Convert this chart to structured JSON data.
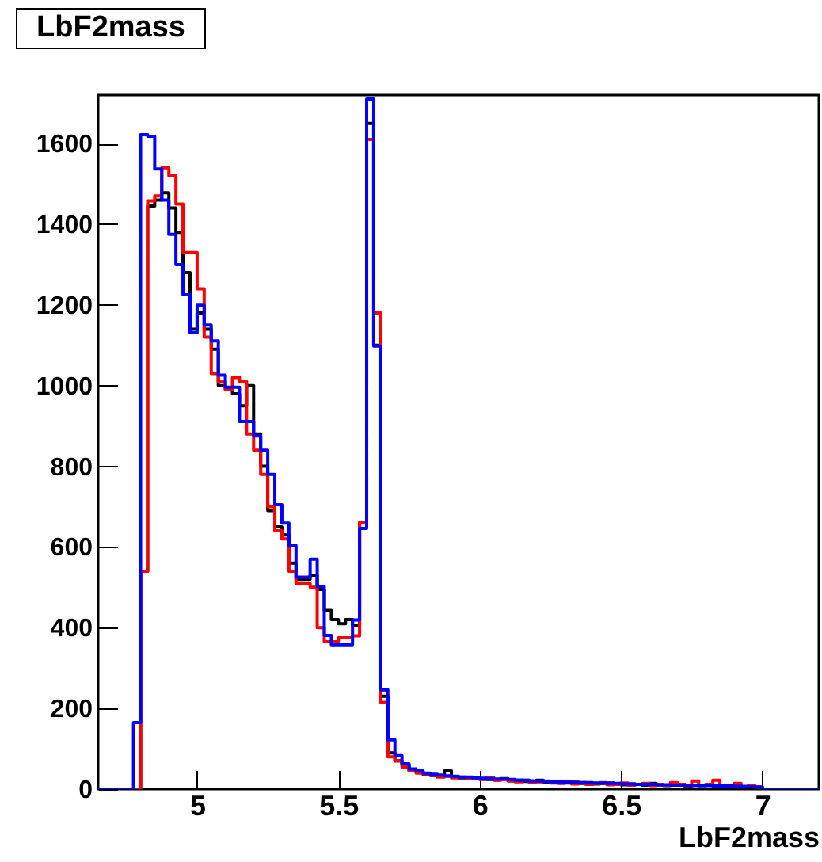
{
  "chart_data": {
    "type": "histogram",
    "title": "LbF2mass",
    "xlabel": "LbF2mass",
    "bins": [
      4.65,
      4.675,
      4.7,
      4.725,
      4.75,
      4.775,
      4.8,
      4.825,
      4.85,
      4.875,
      4.9,
      4.925,
      4.95,
      4.975,
      5.0,
      5.025,
      5.05,
      5.075,
      5.1,
      5.125,
      5.15,
      5.175,
      5.2,
      5.225,
      5.25,
      5.275,
      5.3,
      5.325,
      5.35,
      5.375,
      5.4,
      5.425,
      5.45,
      5.475,
      5.5,
      5.525,
      5.55,
      5.575,
      5.6,
      5.625,
      5.65,
      5.675,
      5.7,
      5.725,
      5.75,
      5.775,
      5.8,
      5.825,
      5.85,
      5.875,
      5.9,
      5.925,
      5.95,
      5.975,
      6.0,
      6.025,
      6.05,
      6.075,
      6.1,
      6.125,
      6.15,
      6.175,
      6.2,
      6.225,
      6.25,
      6.275,
      6.3,
      6.325,
      6.35,
      6.375,
      6.4,
      6.425,
      6.45,
      6.475,
      6.5,
      6.525,
      6.55,
      6.575,
      6.6,
      6.625,
      6.65,
      6.675,
      6.7,
      6.725,
      6.75,
      6.775,
      6.8,
      6.825,
      6.85,
      6.875,
      6.9,
      6.925,
      6.95,
      6.975,
      7.0,
      7.025,
      7.05,
      7.075,
      7.1,
      7.125,
      7.15,
      7.175,
      7.2
    ],
    "series": [
      {
        "color": "#000000",
        "values": [
          0,
          0,
          0,
          0,
          0,
          0,
          540,
          1445,
          1460,
          1478,
          1440,
          1380,
          1280,
          1140,
          1180,
          1140,
          1090,
          1000,
          990,
          980,
          950,
          1000,
          880,
          800,
          690,
          650,
          630,
          560,
          520,
          520,
          530,
          495,
          443,
          420,
          410,
          420,
          406,
          660,
          1650,
          1100,
          230,
          90,
          70,
          60,
          45,
          42,
          36,
          34,
          32,
          45,
          30,
          28,
          26,
          29,
          25,
          24,
          23,
          26,
          21,
          22,
          19,
          20,
          22,
          17,
          16,
          19,
          15,
          17,
          14,
          16,
          13,
          14,
          15,
          12,
          11,
          13,
          12,
          10,
          14,
          11,
          9,
          10,
          12,
          8,
          10,
          9,
          11,
          8,
          7,
          9,
          8,
          6,
          7,
          5,
          0,
          0,
          0,
          0,
          0,
          0,
          0,
          0
        ]
      },
      {
        "color": "#ff0000",
        "values": [
          0,
          0,
          0,
          0,
          0,
          0,
          540,
          1458,
          1470,
          1540,
          1520,
          1450,
          1330,
          1330,
          1240,
          1120,
          1030,
          1010,
          990,
          1020,
          1010,
          880,
          840,
          780,
          700,
          640,
          620,
          540,
          510,
          510,
          500,
          400,
          365,
          365,
          375,
          375,
          380,
          660,
          1610,
          1180,
          215,
          80,
          70,
          55,
          45,
          40,
          38,
          35,
          30,
          32,
          28,
          30,
          27,
          26,
          24,
          28,
          22,
          24,
          20,
          18,
          22,
          17,
          18,
          20,
          15,
          14,
          18,
          13,
          16,
          12,
          14,
          16,
          11,
          12,
          15,
          10,
          12,
          14,
          9,
          11,
          10,
          16,
          12,
          9,
          20,
          10,
          12,
          22,
          8,
          10,
          14,
          6,
          8,
          5,
          0,
          0,
          0,
          0,
          0,
          0,
          0,
          0
        ]
      },
      {
        "color": "#0000ff",
        "values": [
          0,
          0,
          0,
          0,
          0,
          165,
          1622,
          1618,
          1537,
          1460,
          1375,
          1300,
          1225,
          1131,
          1199,
          1150,
          1111,
          1026,
          996,
          996,
          911,
          911,
          875,
          840,
          780,
          705,
          659,
          604,
          525,
          525,
          570,
          502,
          381,
          358,
          358,
          358,
          419,
          646,
          1710,
          1098,
          246,
          122,
          83,
          63,
          50,
          45,
          40,
          37,
          35,
          33,
          32,
          30,
          30,
          28,
          27,
          26,
          25,
          25,
          24,
          22,
          22,
          20,
          20,
          19,
          18,
          18,
          17,
          16,
          16,
          15,
          15,
          15,
          14,
          14,
          13,
          13,
          12,
          12,
          12,
          11,
          11,
          10,
          10,
          10,
          9,
          9,
          9,
          8,
          8,
          8,
          7,
          7,
          6,
          5,
          0,
          0,
          0,
          0,
          0,
          0,
          0,
          0
        ]
      }
    ],
    "xlim": [
      4.65,
      7.2
    ],
    "xticks": [
      5,
      5.5,
      6,
      6.5,
      7
    ],
    "ylim": [
      0,
      1720
    ],
    "yticks": [
      0,
      200,
      400,
      600,
      800,
      1000,
      1200,
      1400,
      1600
    ]
  }
}
